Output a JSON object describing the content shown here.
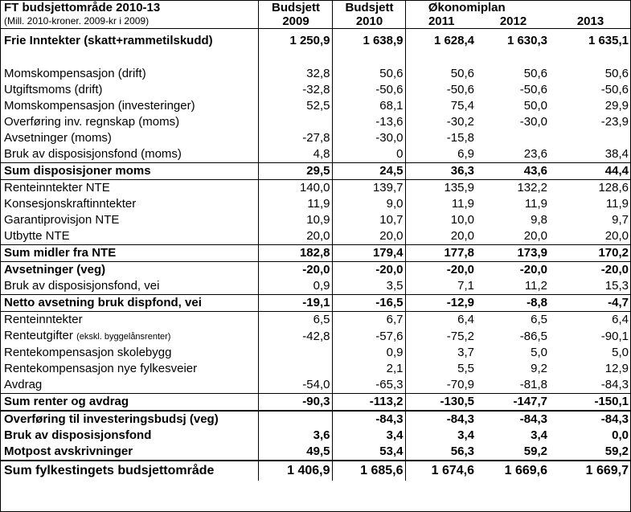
{
  "title": "FT budsjettområde 2010-13",
  "subtitle": "(Mill. 2010-kroner. 2009-kr i 2009)",
  "col_headers": {
    "budsjett_a": "Budsjett",
    "budsjett_b": "Budsjett",
    "okonomiplan": "Økonomiplan"
  },
  "years": [
    "2009",
    "2010",
    "2011",
    "2012",
    "2013"
  ],
  "rows": [
    {
      "label": "Frie Inntekter (skatt+rammetilskudd)",
      "values": [
        "1 250,9",
        "1 638,9",
        "1 628,4",
        "1 630,3",
        "1 635,1"
      ]
    },
    {
      "label": "Momskompensasjon (drift)",
      "values": [
        "32,8",
        "50,6",
        "50,6",
        "50,6",
        "50,6"
      ]
    },
    {
      "label": "Utgiftsmoms (drift)",
      "values": [
        "-32,8",
        "-50,6",
        "-50,6",
        "-50,6",
        "-50,6"
      ]
    },
    {
      "label": "Momskompensasjon (investeringer)",
      "values": [
        "52,5",
        "68,1",
        "75,4",
        "50,0",
        "29,9"
      ]
    },
    {
      "label": "Overføring inv. regnskap (moms)",
      "values": [
        "",
        "-13,6",
        "-30,2",
        "-30,0",
        "-23,9"
      ]
    },
    {
      "label": "Avsetninger (moms)",
      "values": [
        "-27,8",
        "-30,0",
        "-15,8",
        "",
        ""
      ]
    },
    {
      "label": "Bruk av disposisjonsfond (moms)",
      "values": [
        "4,8",
        "0",
        "6,9",
        "23,6",
        "38,4"
      ]
    },
    {
      "label": "Sum disposisjoner moms",
      "values": [
        "29,5",
        "24,5",
        "36,3",
        "43,6",
        "44,4"
      ]
    },
    {
      "label": "Renteinntekter NTE",
      "values": [
        "140,0",
        "139,7",
        "135,9",
        "132,2",
        "128,6"
      ]
    },
    {
      "label": "Konsesjonskraftinntekter",
      "values": [
        "11,9",
        "9,0",
        "11,9",
        "11,9",
        "11,9"
      ]
    },
    {
      "label": "Garantiprovisjon NTE",
      "values": [
        "10,9",
        "10,7",
        "10,0",
        "9,8",
        "9,7"
      ]
    },
    {
      "label": "Utbytte NTE",
      "values": [
        "20,0",
        "20,0",
        "20,0",
        "20,0",
        "20,0"
      ]
    },
    {
      "label": "Sum midler fra NTE",
      "values": [
        "182,8",
        "179,4",
        "177,8",
        "173,9",
        "170,2"
      ]
    },
    {
      "label": "Avsetninger (veg)",
      "values": [
        "-20,0",
        "-20,0",
        "-20,0",
        "-20,0",
        "-20,0"
      ]
    },
    {
      "label": "Bruk av disposisjonsfond, vei",
      "values": [
        "0,9",
        "3,5",
        "7,1",
        "11,2",
        "15,3"
      ]
    },
    {
      "label": "Netto avsetning bruk dispfond, vei",
      "values": [
        "-19,1",
        "-16,5",
        "-12,9",
        "-8,8",
        "-4,7"
      ]
    },
    {
      "label": "Renteinntekter",
      "values": [
        "6,5",
        "6,7",
        "6,4",
        "6,5",
        "6,4"
      ]
    },
    {
      "label": "Renteutgifter",
      "note": "(ekskl. byggelånsrenter)",
      "values": [
        "-42,8",
        "-57,6",
        "-75,2",
        "-86,5",
        "-90,1"
      ]
    },
    {
      "label": "Rentekompensasjon skolebygg",
      "values": [
        "",
        "0,9",
        "3,7",
        "5,0",
        "5,0"
      ]
    },
    {
      "label": "Rentekompensasjon nye fylkesveier",
      "values": [
        "",
        "2,1",
        "5,5",
        "9,2",
        "12,9"
      ]
    },
    {
      "label": "Avdrag",
      "values": [
        "-54,0",
        "-65,3",
        "-70,9",
        "-81,8",
        "-84,3"
      ]
    },
    {
      "label": "Sum renter og avdrag",
      "values": [
        "-90,3",
        "-113,2",
        "-130,5",
        "-147,7",
        "-150,1"
      ]
    },
    {
      "label": "Overføring til investeringsbudsj (veg)",
      "values": [
        "",
        "-84,3",
        "-84,3",
        "-84,3",
        "-84,3"
      ]
    },
    {
      "label": "Bruk av disposisjonsfond",
      "values": [
        "3,6",
        "3,4",
        "3,4",
        "3,4",
        "0,0"
      ]
    },
    {
      "label": "Motpost avskrivninger",
      "values": [
        "49,5",
        "53,4",
        "56,3",
        "59,2",
        "59,2"
      ]
    },
    {
      "label": "Sum fylkestingets budsjettområde",
      "values": [
        "1 406,9",
        "1 685,6",
        "1 674,6",
        "1 669,6",
        "1 669,7"
      ]
    }
  ]
}
